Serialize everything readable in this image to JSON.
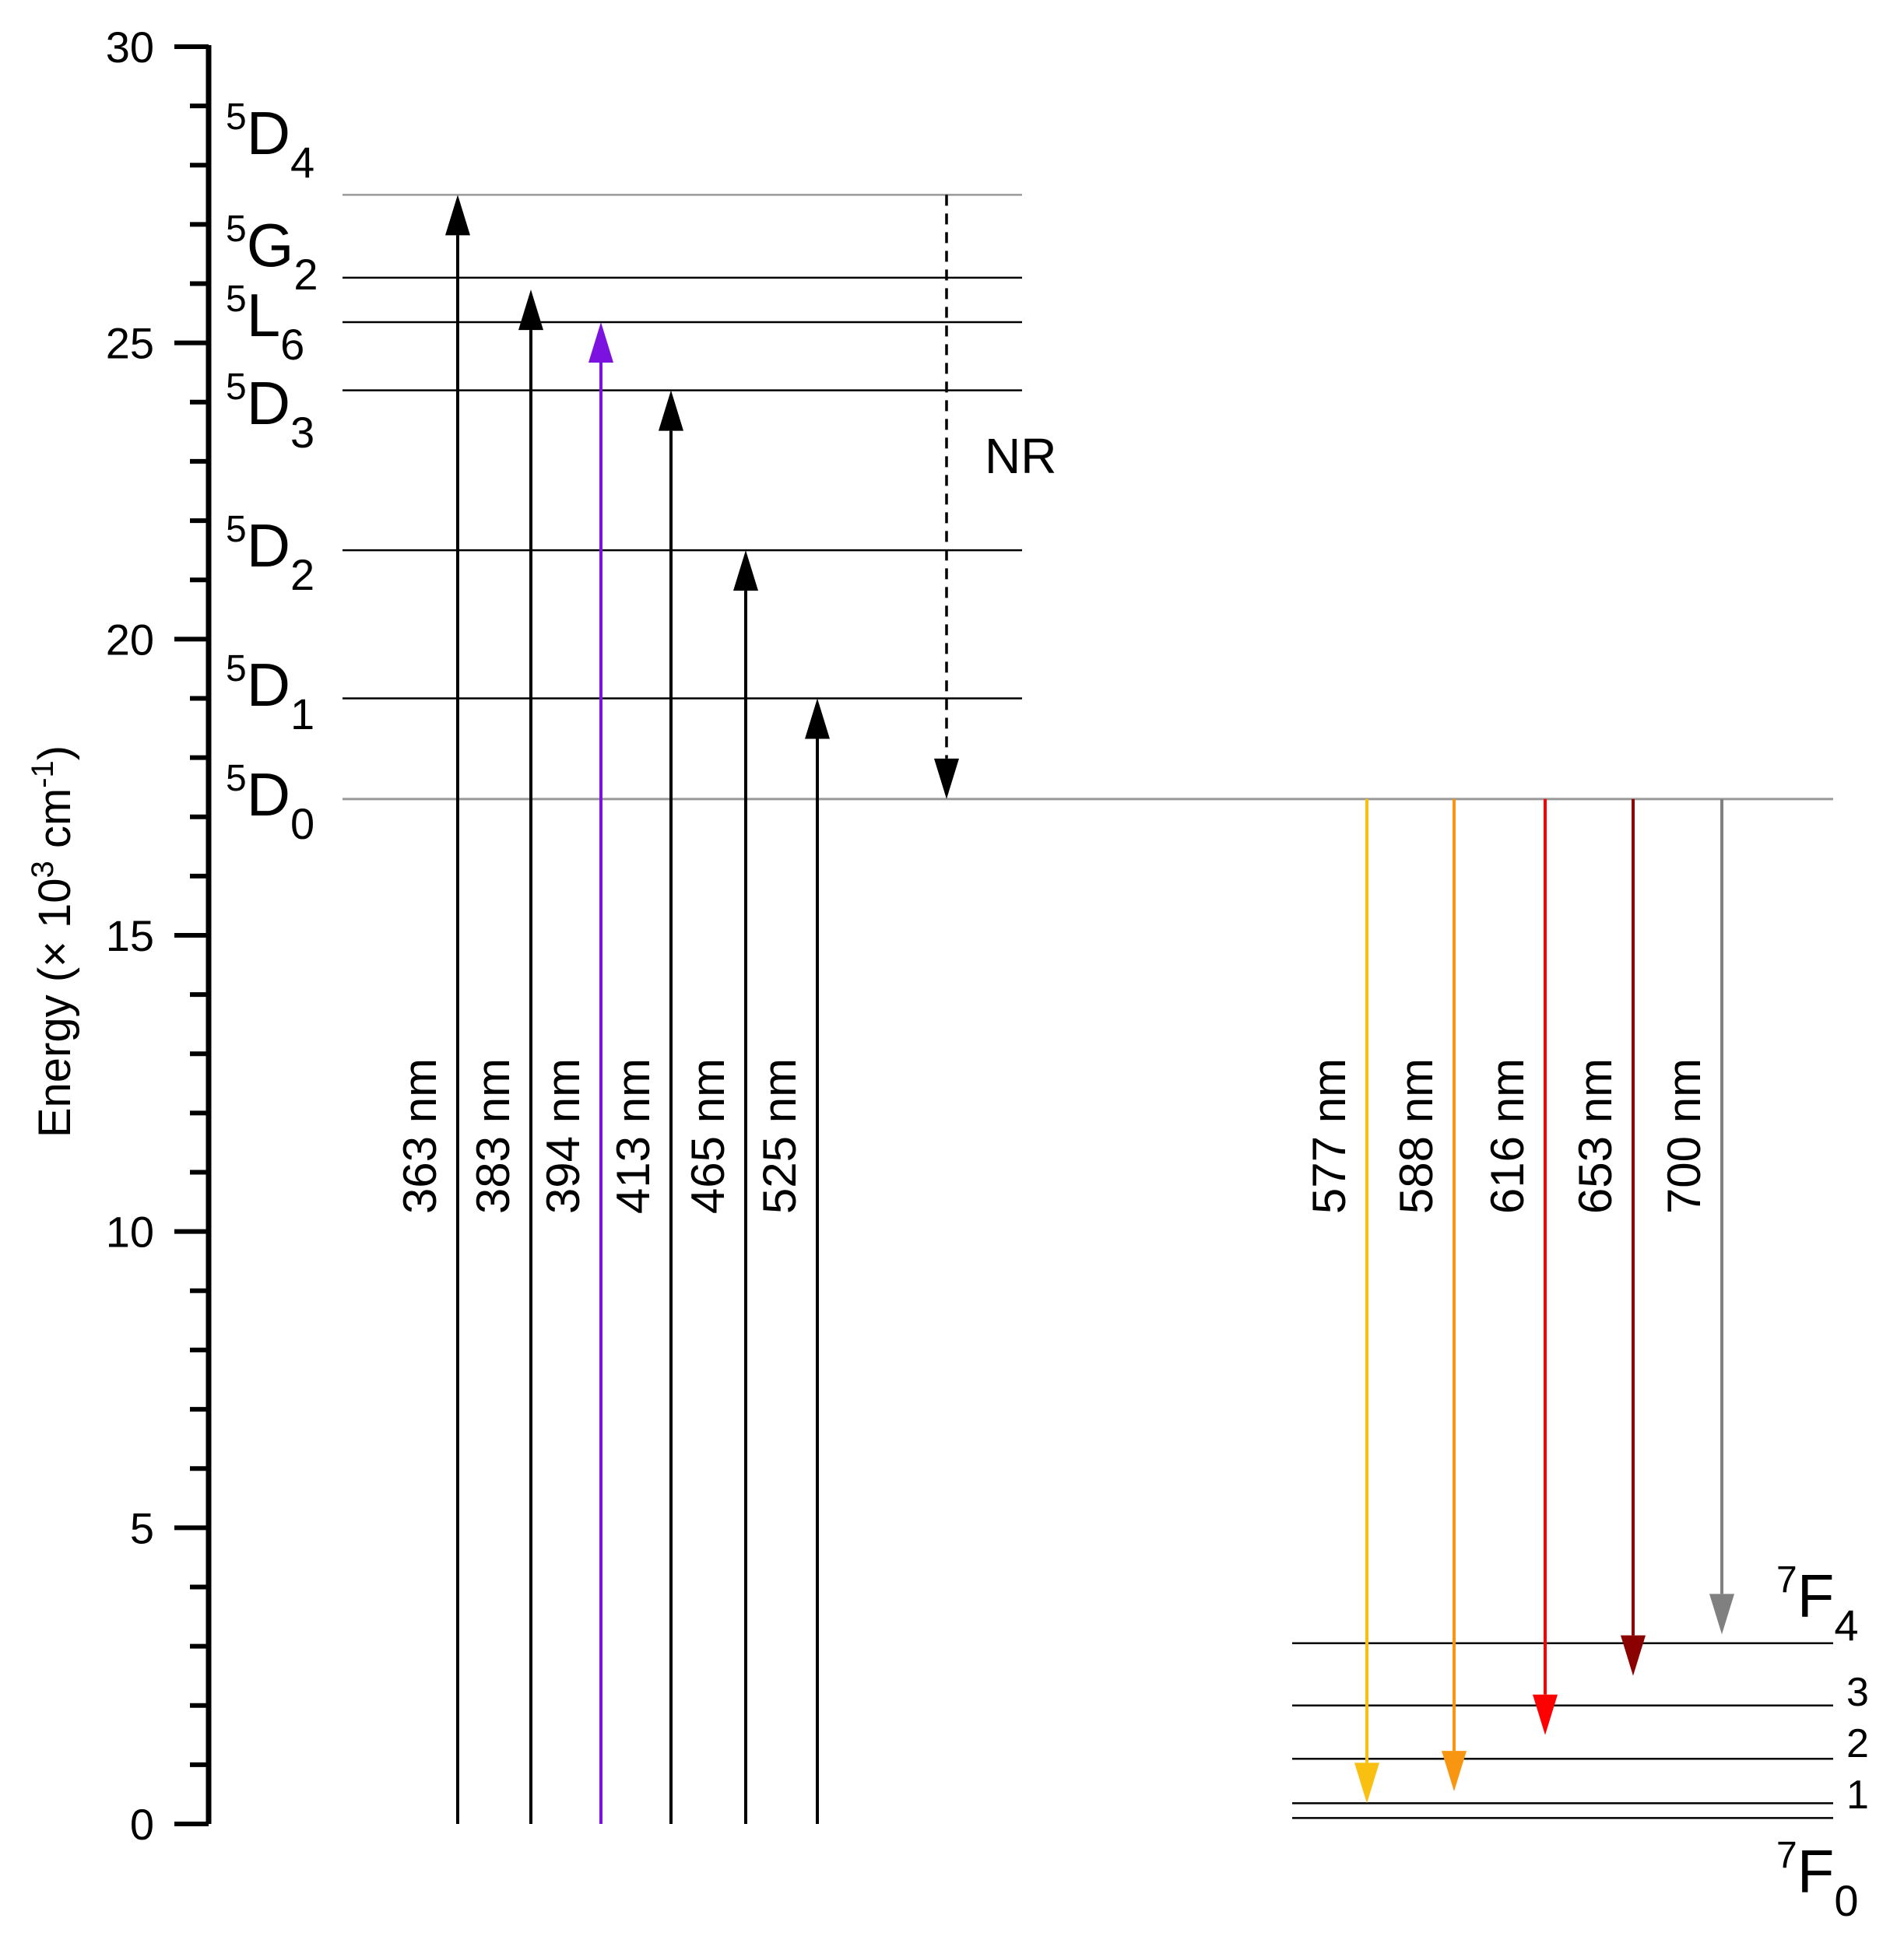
{
  "chart_data": {
    "type": "energy-level-diagram",
    "ylabel_prefix": "Energy (× 10",
    "ylabel_sup1": "3",
    "ylabel_mid": " cm",
    "ylabel_sup2": "-1",
    "ylabel_suffix": ")",
    "ylim": [
      0,
      30
    ],
    "ytick_values": [
      0,
      5,
      10,
      15,
      20,
      25,
      30
    ],
    "ytick_labels": [
      "0",
      "5",
      "10",
      "15",
      "20",
      "25",
      "30"
    ],
    "upper_levels": [
      {
        "sup": "5",
        "letter": "D",
        "sub": "4",
        "energy": 27.5
      },
      {
        "sup": "5",
        "letter": "G",
        "sub": "2",
        "energy": 26.1
      },
      {
        "sup": "5",
        "letter": "L",
        "sub": "6",
        "energy": 25.35
      },
      {
        "sup": "5",
        "letter": "D",
        "sub": "3",
        "energy": 24.2
      },
      {
        "sup": "5",
        "letter": "D",
        "sub": "2",
        "energy": 21.5
      },
      {
        "sup": "5",
        "letter": "D",
        "sub": "1",
        "energy": 19.0
      },
      {
        "sup": "5",
        "letter": "D",
        "sub": "0",
        "energy": 17.3
      }
    ],
    "ground_levels": [
      {
        "label": "4",
        "energy": 3.05
      },
      {
        "label": "3",
        "energy": 2.0
      },
      {
        "label": "2",
        "energy": 1.1
      },
      {
        "label": "1",
        "energy": 0.35
      },
      {
        "label": "0",
        "energy": 0.1
      }
    ],
    "ground_term": {
      "sup": "7",
      "letter": "F",
      "sub_top": "4",
      "sub_bottom": "0"
    },
    "excitation": [
      {
        "label": "363 nm",
        "to": 27.5,
        "color": "#000000"
      },
      {
        "label": "383 nm",
        "to": 25.9,
        "color": "#000000"
      },
      {
        "label": "394 nm",
        "to": 25.35,
        "color": "#7b12e0"
      },
      {
        "label": "413 nm",
        "to": 24.2,
        "color": "#000000"
      },
      {
        "label": "465 nm",
        "to": 21.5,
        "color": "#000000"
      },
      {
        "label": "525 nm",
        "to": 19.0,
        "color": "#000000"
      }
    ],
    "emission": [
      {
        "label": "577 nm",
        "to": 0.35,
        "color": "#f9c012"
      },
      {
        "label": "588 nm",
        "to": 0.55,
        "color": "#f89612"
      },
      {
        "label": "616 nm",
        "to": 1.5,
        "color": "#ff0000"
      },
      {
        "label": "653 nm",
        "to": 2.5,
        "color": "#8b0000"
      },
      {
        "label": "700 nm",
        "to": 3.2,
        "color": "#808080"
      }
    ],
    "emission_from": 17.3,
    "nonradiative": {
      "label": "NR",
      "from": 27.5,
      "to": 17.3
    }
  }
}
